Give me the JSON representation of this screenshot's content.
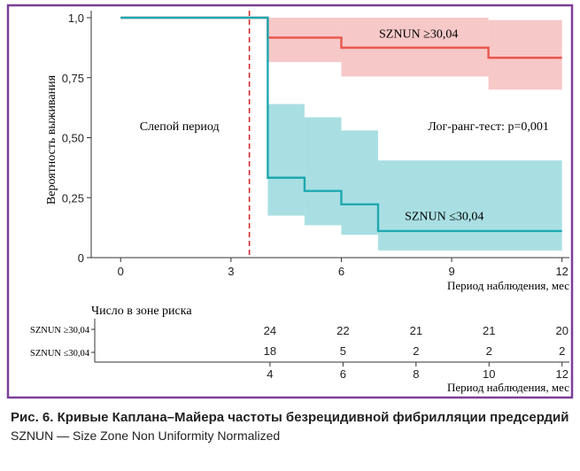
{
  "chart_data": [
    {
      "type": "line",
      "subtype": "kaplan-meier",
      "title": "",
      "xlabel": "Период наблюдения, мес",
      "ylabel": "Вероятность выживания",
      "xlim": [
        -0.8,
        12.2
      ],
      "ylim": [
        0,
        1.0
      ],
      "xticks": [
        0,
        3,
        6,
        9,
        12
      ],
      "xtick_labels": [
        "0",
        "3",
        "6",
        "9",
        "12"
      ],
      "yticks": [
        0,
        0.25,
        0.5,
        0.75,
        1.0
      ],
      "ytick_labels": [
        "0",
        "0,25",
        "0,50",
        "0,75",
        "1,0"
      ],
      "grid": false,
      "vline": {
        "x": 3.5,
        "color": "#d42a2a",
        "style": "dashed"
      },
      "annotations": [
        {
          "text": "Слепой период",
          "x": 1.6,
          "y": 0.55
        },
        {
          "text": "Лог-ранг-тест: p=0,001",
          "x": 10.0,
          "y": 0.55
        }
      ],
      "series": [
        {
          "name": "SZNUN ≥30,04",
          "color": "#e8584f",
          "band_color": "#f7c8c8",
          "x": [
            0,
            4,
            6,
            10,
            12
          ],
          "y": [
            1.0,
            0.917,
            0.875,
            0.833,
            0.833
          ],
          "lower": [
            1.0,
            0.815,
            0.755,
            0.7,
            0.7
          ],
          "upper": [
            1.0,
            1.0,
            1.0,
            0.99,
            0.99
          ],
          "label_pos": {
            "x": 8.1,
            "y": 0.935
          }
        },
        {
          "name": "SZNUN ≤30,04",
          "color": "#1fa8b0",
          "band_color": "#a9dfe3",
          "x": [
            0,
            4,
            5,
            6,
            7,
            12
          ],
          "y": [
            1.0,
            0.333,
            0.278,
            0.222,
            0.111,
            0.111
          ],
          "lower": [
            1.0,
            0.175,
            0.135,
            0.095,
            0.03,
            0.03
          ],
          "upper": [
            1.0,
            0.64,
            0.585,
            0.53,
            0.405,
            0.405
          ],
          "label_pos": {
            "x": 8.8,
            "y": 0.175
          }
        }
      ]
    },
    {
      "type": "table",
      "title": "Число в зоне риска",
      "xlabel": "Период наблюдения, мес",
      "xlim": [
        -0.8,
        12.2
      ],
      "xticks": [
        4,
        6,
        8,
        10,
        12
      ],
      "xtick_labels": [
        "4",
        "6",
        "8",
        "10",
        "12"
      ],
      "rows": [
        {
          "name": "SZNUN ≥30,04",
          "values": [
            24,
            22,
            21,
            21,
            20
          ]
        },
        {
          "name": "SZNUN ≤30,04",
          "values": [
            18,
            5,
            2,
            2,
            2
          ]
        }
      ]
    }
  ],
  "caption": {
    "title": "Рис. 6. Кривые Каплана–Майера частоты безрецидивной фибрилляции предсердий",
    "note": "SZNUN — Size Zone Non Uniformity Normalized"
  },
  "colors": {
    "frame": "#7b3f98",
    "axis": "#333333"
  }
}
